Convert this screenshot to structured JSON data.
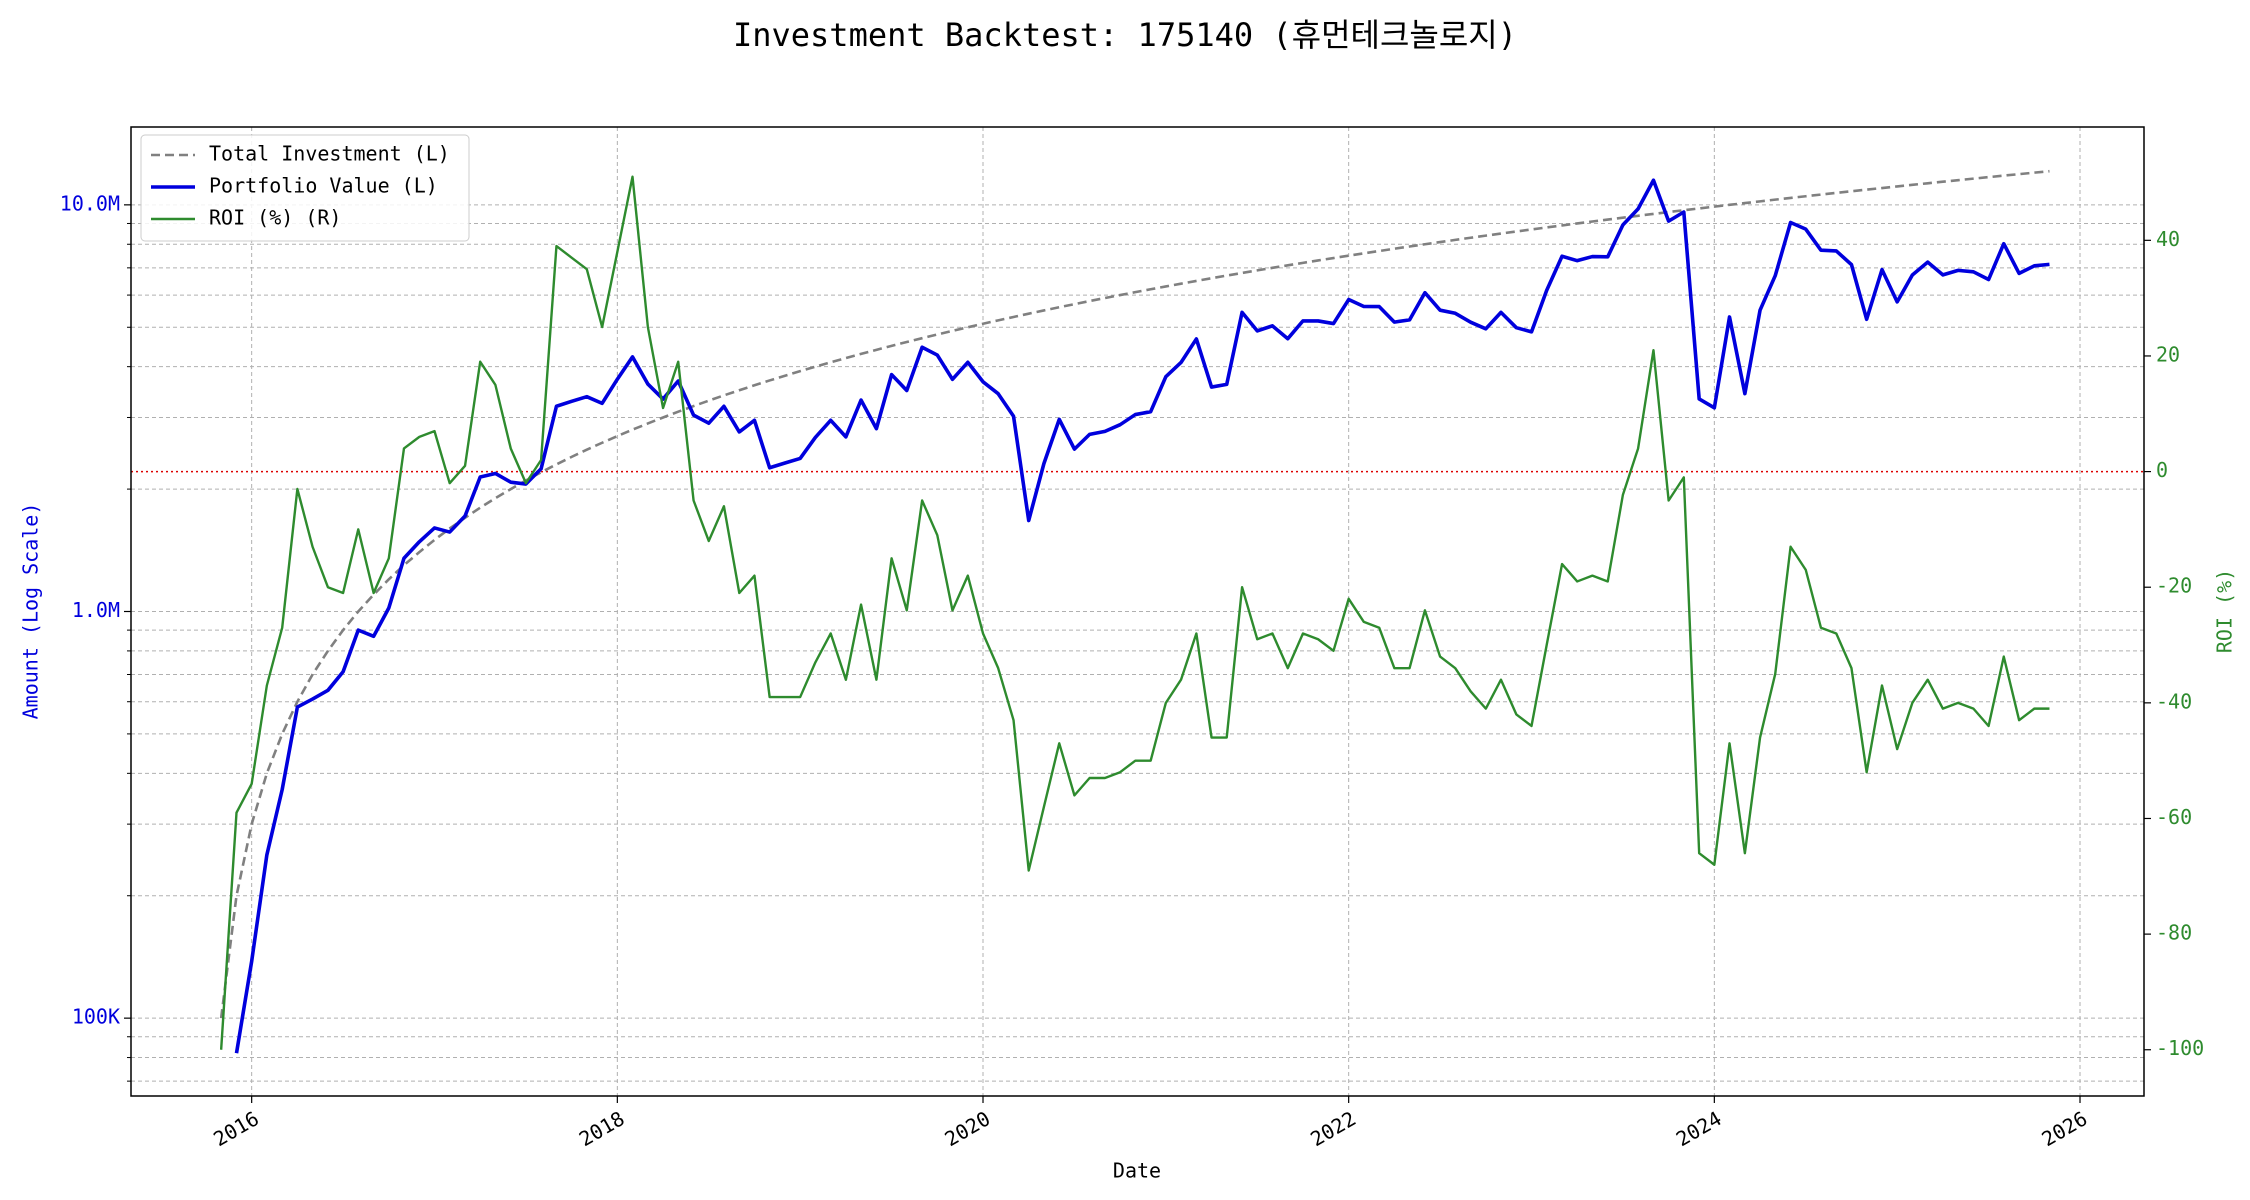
{
  "chart_data": {
    "type": "line",
    "title": "Investment Backtest: 175140 (휴먼테크놀로지)",
    "x_label": "Date",
    "y_label": "Amount (Log Scale)",
    "y2_label": "ROI (%)",
    "y_scale": "log",
    "grid": true,
    "legend": "upper left",
    "xlim": [
      2015.34,
      2026.35
    ],
    "xticks": [
      2016,
      2018,
      2020,
      2022,
      2024,
      2026
    ],
    "ylim": [
      64350,
      15540000
    ],
    "yticks": [
      {
        "value": 100000,
        "label": "100K"
      },
      {
        "value": 1000000,
        "label": "1.0M"
      },
      {
        "value": 10000000,
        "label": "10.0M"
      }
    ],
    "yminorticks": [
      70000,
      80000,
      90000,
      200000,
      300000,
      400000,
      500000,
      600000,
      700000,
      800000,
      900000,
      2000000,
      3000000,
      4000000,
      5000000,
      6000000,
      7000000,
      8000000,
      9000000
    ],
    "y2lim": [
      -108,
      59.6
    ],
    "y2ticks": [
      -100,
      -80,
      -60,
      -40,
      -20,
      0,
      20,
      40
    ],
    "reference_line": {
      "axis": "y2",
      "value": 0,
      "color": "#dd0000"
    },
    "x": [
      2015.833,
      2015.917,
      2016.0,
      2016.083,
      2016.167,
      2016.25,
      2016.333,
      2016.417,
      2016.5,
      2016.583,
      2016.667,
      2016.75,
      2016.833,
      2016.917,
      2017.0,
      2017.083,
      2017.167,
      2017.25,
      2017.333,
      2017.417,
      2017.5,
      2017.583,
      2017.667,
      2017.75,
      2017.833,
      2017.917,
      2018.0,
      2018.083,
      2018.167,
      2018.25,
      2018.333,
      2018.417,
      2018.5,
      2018.583,
      2018.667,
      2018.75,
      2018.833,
      2018.917,
      2019.0,
      2019.083,
      2019.167,
      2019.25,
      2019.333,
      2019.417,
      2019.5,
      2019.583,
      2019.667,
      2019.75,
      2019.833,
      2019.917,
      2020.0,
      2020.083,
      2020.167,
      2020.25,
      2020.333,
      2020.417,
      2020.5,
      2020.583,
      2020.667,
      2020.75,
      2020.833,
      2020.917,
      2021.0,
      2021.083,
      2021.167,
      2021.25,
      2021.333,
      2021.417,
      2021.5,
      2021.583,
      2021.667,
      2021.75,
      2021.833,
      2021.917,
      2022.0,
      2022.083,
      2022.167,
      2022.25,
      2022.333,
      2022.417,
      2022.5,
      2022.583,
      2022.667,
      2022.75,
      2022.833,
      2022.917,
      2023.0,
      2023.083,
      2023.167,
      2023.25,
      2023.333,
      2023.417,
      2023.5,
      2023.583,
      2023.667,
      2023.75,
      2023.833,
      2023.917,
      2024.0,
      2024.083,
      2024.167,
      2024.25,
      2024.333,
      2024.417,
      2024.5,
      2024.583,
      2024.667,
      2024.75,
      2024.833,
      2024.917,
      2025.0,
      2025.083,
      2025.167,
      2025.25,
      2025.333,
      2025.417,
      2025.5,
      2025.583,
      2025.667,
      2025.75,
      2025.833
    ],
    "series": [
      {
        "name": "Total Investment (L)",
        "color": "#808080",
        "linestyle": "dashed",
        "axis": "y",
        "values": [
          100000,
          200000,
          300000,
          400000,
          500000,
          600000,
          700000,
          800000,
          900000,
          1000000,
          1100000,
          1200000,
          1300000,
          1400000,
          1500000,
          1600000,
          1700000,
          1800000,
          1900000,
          2000000,
          2100000,
          2200000,
          2300000,
          2400000,
          2500000,
          2600000,
          2700000,
          2800000,
          2900000,
          3000000,
          3100000,
          3200000,
          3300000,
          3400000,
          3500000,
          3600000,
          3700000,
          3800000,
          3900000,
          4000000,
          4100000,
          4200000,
          4300000,
          4400000,
          4500000,
          4600000,
          4700000,
          4800000,
          4900000,
          5000000,
          5100000,
          5200000,
          5300000,
          5400000,
          5500000,
          5600000,
          5700000,
          5800000,
          5900000,
          6000000,
          6100000,
          6200000,
          6300000,
          6400000,
          6500000,
          6600000,
          6700000,
          6800000,
          6900000,
          7000000,
          7100000,
          7200000,
          7300000,
          7400000,
          7500000,
          7600000,
          7700000,
          7800000,
          7900000,
          8000000,
          8100000,
          8200000,
          8300000,
          8400000,
          8500000,
          8600000,
          8700000,
          8800000,
          8900000,
          9000000,
          9100000,
          9200000,
          9300000,
          9400000,
          9500000,
          9600000,
          9700000,
          9800000,
          9900000,
          10000000,
          10100000,
          10200000,
          10300000,
          10400000,
          10500000,
          10600000,
          10700000,
          10800000,
          10900000,
          11000000,
          11100000,
          11200000,
          11300000,
          11400000,
          11500000,
          11600000,
          11700000,
          11800000,
          11900000,
          12000000,
          12100000
        ]
      },
      {
        "name": "Portfolio Value (L)",
        "color": "#0000dd",
        "linestyle": "solid",
        "axis": "y",
        "values": [
          null,
          82000,
          138000,
          252000,
          365000,
          582000,
          609000,
          640000,
          711000,
          900000,
          869000,
          1020000,
          1352000,
          1484000,
          1605000,
          1568000,
          1717000,
          2142000,
          2185000,
          2080000,
          2058000,
          2244000,
          3197000,
          3288000,
          3375000,
          3250000,
          3726000,
          4228000,
          3625000,
          3330000,
          3689000,
          3040000,
          2904000,
          3196000,
          2765000,
          2952000,
          2257000,
          2318000,
          2379000,
          2680000,
          2952000,
          2688000,
          3311000,
          2816000,
          3825000,
          3496000,
          4465000,
          4272000,
          3724000,
          4100000,
          3672000,
          3432000,
          3021000,
          1674000,
          2310000,
          2968000,
          2508000,
          2726000,
          2773000,
          2880000,
          3050000,
          3100000,
          3780000,
          4096000,
          4680000,
          3564000,
          3618000,
          5440000,
          4899000,
          5040000,
          4686000,
          5184000,
          5183000,
          5106000,
          5850000,
          5624000,
          5621000,
          5148000,
          5214000,
          6080000,
          5508000,
          5412000,
          5146000,
          4956000,
          5440000,
          4988000,
          4872000,
          6160000,
          7476000,
          7290000,
          7462000,
          7452000,
          8928000,
          9776000,
          11495000,
          9120000,
          9603000,
          3332000,
          3168000,
          5300000,
          3434000,
          5508000,
          6695000,
          9048000,
          8715000,
          7738000,
          7704000,
          7128000,
          5232000,
          6930000,
          5772000,
          6720000,
          7232000,
          6726000,
          6900000,
          6844000,
          6552000,
          8024000,
          6783000,
          7080000,
          7139000
        ]
      },
      {
        "name": "ROI (%) (R)",
        "color": "#2e8b2e",
        "linestyle": "solid",
        "axis": "y2",
        "values": [
          -100,
          -59,
          -54,
          -37,
          -27,
          -3,
          -13,
          -20,
          -21,
          -10,
          -21,
          -15,
          4,
          6,
          7,
          -2,
          1,
          19,
          15,
          4,
          -2,
          2,
          39,
          37,
          35,
          25,
          38,
          51,
          25,
          11,
          19,
          -5,
          -12,
          -6,
          -21,
          -18,
          -39,
          -39,
          -39,
          -33,
          -28,
          -36,
          -23,
          -36,
          -15,
          -24,
          -5,
          -11,
          -24,
          -18,
          -28,
          -34,
          -43,
          -69,
          -58,
          -47,
          -56,
          -53,
          -53,
          -52,
          -50,
          -50,
          -40,
          -36,
          -28,
          -46,
          -46,
          -20,
          -29,
          -28,
          -34,
          -28,
          -29,
          -31,
          -22,
          -26,
          -27,
          -34,
          -34,
          -24,
          -32,
          -34,
          -38,
          -41,
          -36,
          -42,
          -44,
          -30,
          -16,
          -19,
          -18,
          -19,
          -4,
          4,
          21,
          -5,
          -1,
          -66,
          -68,
          -47,
          -66,
          -46,
          -35,
          -13,
          -17,
          -27,
          -28,
          -34,
          -52,
          -37,
          -48,
          -40,
          -36,
          -41,
          -40,
          -41,
          -44,
          -32,
          -43,
          -41,
          -41
        ]
      }
    ]
  }
}
